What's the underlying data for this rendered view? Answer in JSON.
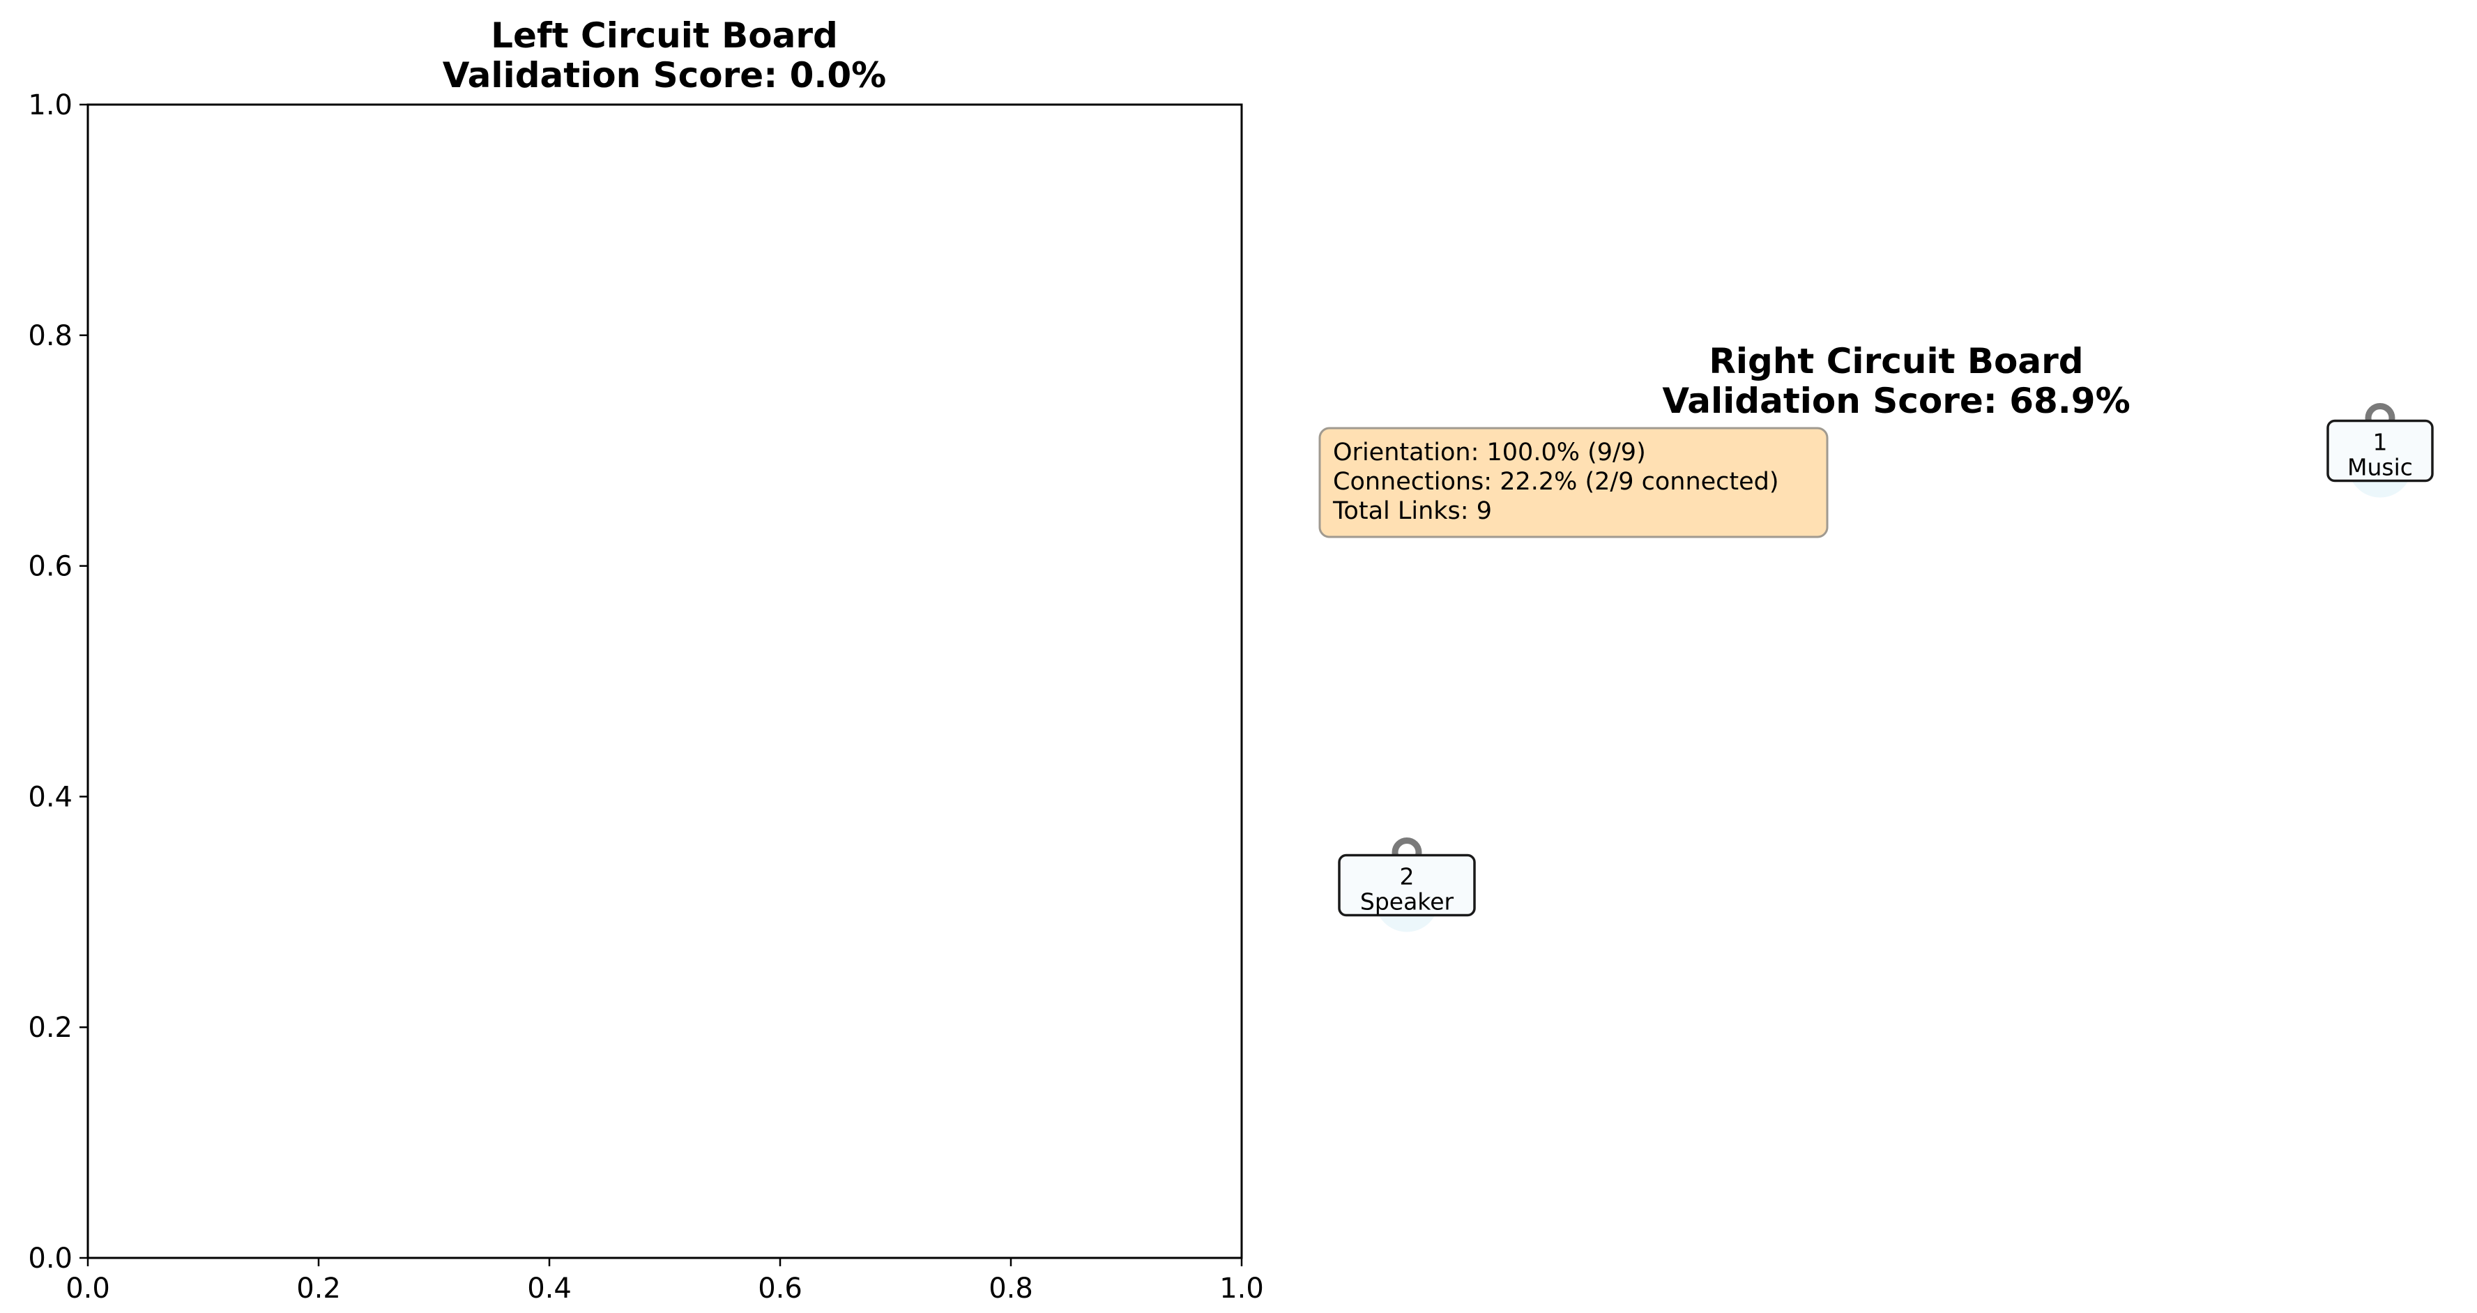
{
  "chart_data": [
    {
      "type": "scatter",
      "title_line1": "Left Circuit Board",
      "title_line2": "Validation Score: 0.0%",
      "xlim": [
        0.0,
        1.0
      ],
      "ylim": [
        0.0,
        1.0
      ],
      "xticks": [
        "0.0",
        "0.2",
        "0.4",
        "0.6",
        "0.8",
        "1.0"
      ],
      "yticks": [
        "0.0",
        "0.2",
        "0.4",
        "0.6",
        "0.8",
        "1.0"
      ],
      "xlabel": "",
      "ylabel": "",
      "grid": false,
      "points": []
    },
    {
      "type": "scatter",
      "title_line1": "Right Circuit Board",
      "title_line2": "Validation Score: 68.9%",
      "axes_visible": false,
      "info_box": {
        "lines": [
          "Orientation: 100.0% (9/9)",
          "Connections: 22.2% (2/9 connected)",
          "Total Links: 9"
        ],
        "background": "#ffe0b3"
      },
      "nodes": [
        {
          "id": "1",
          "label": "Music",
          "x": 1.0,
          "y": 0.85
        },
        {
          "id": "2",
          "label": "Speaker",
          "x": 0.0,
          "y": 0.15
        }
      ]
    }
  ]
}
